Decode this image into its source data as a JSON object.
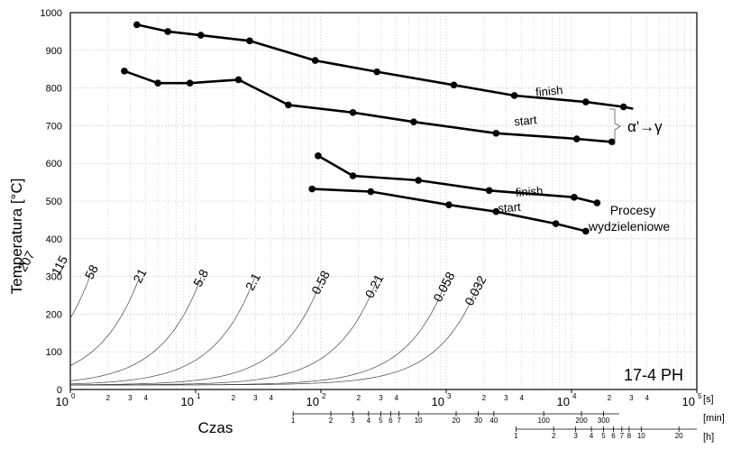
{
  "chart_data": {
    "type": "line",
    "title": "",
    "xlabel": "Czas",
    "ylabel": "Temperatura [°C]",
    "x_scale": "log",
    "xlim": [
      1,
      100000
    ],
    "ylim": [
      0,
      1000
    ],
    "grid": true,
    "y_ticks": [
      0,
      100,
      200,
      300,
      400,
      500,
      600,
      700,
      800,
      900,
      1000
    ],
    "x_decades": [
      {
        "base": "10",
        "exp": "0"
      },
      {
        "base": "10",
        "exp": "1"
      },
      {
        "base": "10",
        "exp": "2"
      },
      {
        "base": "10",
        "exp": "3"
      },
      {
        "base": "10",
        "exp": "4"
      },
      {
        "base": "10",
        "exp": "5"
      }
    ],
    "x_minor_labels": [
      "2",
      "3",
      "4"
    ],
    "unit_seconds": "[s]",
    "unit_minutes": "[min]",
    "unit_hours": "[h]",
    "minute_ticks": [
      {
        "label": "1",
        "min": 1
      },
      {
        "label": "2",
        "min": 2
      },
      {
        "label": "3",
        "min": 3
      },
      {
        "label": "4",
        "min": 4
      },
      {
        "label": "5",
        "min": 5
      },
      {
        "label": "6",
        "min": 6
      },
      {
        "label": "7",
        "min": 7
      },
      {
        "label": "10",
        "min": 10
      },
      {
        "label": "20",
        "min": 20
      },
      {
        "label": "30",
        "min": 30
      },
      {
        "label": "40",
        "min": 40
      },
      {
        "label": "100",
        "min": 100
      },
      {
        "label": "200",
        "min": 200
      },
      {
        "label": "300",
        "min": 300
      }
    ],
    "hour_ticks": [
      {
        "label": "1",
        "h": 1
      },
      {
        "label": "2",
        "h": 2
      },
      {
        "label": "3",
        "h": 3
      },
      {
        "label": "4",
        "h": 4
      },
      {
        "label": "5",
        "h": 5
      },
      {
        "label": "6",
        "h": 6
      },
      {
        "label": "7",
        "h": 7
      },
      {
        "label": "8",
        "h": 8
      },
      {
        "label": "10",
        "h": 10
      },
      {
        "label": "20",
        "h": 20
      }
    ],
    "cooling_curves": [
      {
        "label": "207",
        "a": 1,
        "T0": 12,
        "tau": 207
      },
      {
        "label": "115",
        "a": 1.9,
        "T0": 12,
        "tau": 115
      },
      {
        "label": "58",
        "a": 3.6,
        "T0": 12,
        "tau": 58
      },
      {
        "label": "21",
        "a": 9,
        "T0": 12,
        "tau": 21
      },
      {
        "label": "5.8",
        "a": 28,
        "T0": 12,
        "tau": 5.8
      },
      {
        "label": "2.1",
        "a": 75,
        "T0": 12,
        "tau": 2.1
      },
      {
        "label": "0.58",
        "a": 260,
        "T0": 12,
        "tau": 0.58
      },
      {
        "label": "0.21",
        "a": 720,
        "T0": 12,
        "tau": 0.21
      },
      {
        "label": "0.058",
        "a": 2600,
        "T0": 12,
        "tau": 0.058
      },
      {
        "label": "0.032",
        "a": 4800,
        "T0": 12,
        "tau": 0.032
      }
    ],
    "series": [
      {
        "name": "finish",
        "group": "α'→γ",
        "points": [
          [
            3.4,
            968
          ],
          [
            6,
            950
          ],
          [
            11,
            940
          ],
          [
            27,
            925
          ],
          [
            90,
            873
          ],
          [
            280,
            843
          ],
          [
            1150,
            808
          ],
          [
            3500,
            780
          ],
          [
            13000,
            763
          ],
          [
            26000,
            750
          ]
        ],
        "line_end": [
          31000,
          745
        ]
      },
      {
        "name": "start",
        "group": "α'→γ",
        "points": [
          [
            2.7,
            845
          ],
          [
            5,
            813
          ],
          [
            9,
            813
          ],
          [
            22,
            822
          ],
          [
            55,
            755
          ],
          [
            180,
            735
          ],
          [
            550,
            710
          ],
          [
            2500,
            680
          ],
          [
            11000,
            665
          ],
          [
            21000,
            657
          ]
        ]
      },
      {
        "name": "finish",
        "group": "Procesy wydzieleniowe",
        "points": [
          [
            95,
            620
          ],
          [
            180,
            567
          ],
          [
            600,
            555
          ],
          [
            2200,
            528
          ],
          [
            10500,
            510
          ],
          [
            16000,
            495
          ]
        ]
      },
      {
        "name": "start",
        "group": "Procesy wydzieleniowe",
        "points": [
          [
            85,
            532
          ],
          [
            250,
            525
          ],
          [
            1050,
            490
          ],
          [
            2500,
            472
          ],
          [
            7500,
            440
          ],
          [
            13000,
            420
          ]
        ]
      }
    ],
    "annotations": [
      {
        "text": "α'→γ"
      },
      {
        "text": "Procesy"
      },
      {
        "text": "wydzieleniowe"
      },
      {
        "text": "17-4 PH"
      }
    ],
    "series_labels": [
      "finish",
      "start",
      "finish",
      "start"
    ]
  }
}
